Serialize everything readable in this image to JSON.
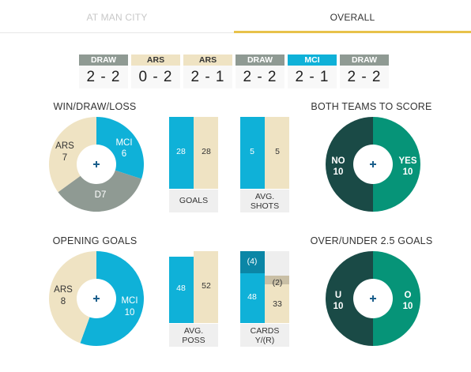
{
  "tabs": [
    {
      "label": "AT MAN CITY",
      "active": false
    },
    {
      "label": "OVERALL",
      "active": true
    }
  ],
  "results": [
    {
      "badge": "DRAW",
      "score": "2 - 2",
      "color": "#8f9a93",
      "text_color": "#ffffff"
    },
    {
      "badge": "ARS",
      "score": "0 - 2",
      "color": "#efe3c3",
      "text_color": "#333333"
    },
    {
      "badge": "ARS",
      "score": "2 - 1",
      "color": "#efe3c3",
      "text_color": "#333333"
    },
    {
      "badge": "DRAW",
      "score": "2 - 2",
      "color": "#8f9a93",
      "text_color": "#ffffff"
    },
    {
      "badge": "MCI",
      "score": "2 - 1",
      "color": "#0fb1d8",
      "text_color": "#ffffff"
    },
    {
      "badge": "DRAW",
      "score": "2 - 2",
      "color": "#8f9a93",
      "text_color": "#ffffff"
    }
  ],
  "colors": {
    "mci": "#0fb1d8",
    "ars": "#efe3c3",
    "draw": "#8f9a93",
    "yes_over": "#069478",
    "no_under": "#1a4a46",
    "caption_bg": "#efefef",
    "tab_accent": "#e8c24a",
    "card_red": "#c9bfa5"
  },
  "win_draw_loss": {
    "title": "WIN/DRAW/LOSS",
    "mci_label": "MCI",
    "mci_value": "6",
    "ars_label": "ARS",
    "ars_value": "7",
    "draw_label": "D7",
    "fractions": {
      "mci": 0.3,
      "draw": 0.35,
      "ars": 0.35
    }
  },
  "opening_goals": {
    "title": "OPENING GOALS",
    "mci_label": "MCI",
    "mci_value": "10",
    "ars_label": "ARS",
    "ars_value": "8",
    "fractions": {
      "mci": 0.5556,
      "ars": 0.4444
    }
  },
  "both_teams_to_score": {
    "title": "BOTH TEAMS TO SCORE",
    "yes_label": "YES",
    "yes_value": "10",
    "no_label": "NO",
    "no_value": "10",
    "fractions": {
      "yes": 0.5,
      "no": 0.5
    }
  },
  "over_under": {
    "title": "OVER/UNDER 2.5 GOALS",
    "over_label": "O",
    "over_value": "10",
    "under_label": "U",
    "under_value": "10",
    "fractions": {
      "over": 0.5,
      "under": 0.5
    }
  },
  "goals": {
    "caption": "GOALS",
    "mci": "28",
    "ars": "28",
    "mci_fill": 1.0,
    "ars_fill": 1.0
  },
  "avg_shots": {
    "caption_line1": "AVG.",
    "caption_line2": "SHOTS",
    "mci": "5",
    "ars": "5",
    "mci_fill": 1.0,
    "ars_fill": 1.0
  },
  "avg_poss": {
    "caption_line1": "AVG.",
    "caption_line2": "POSS",
    "mci": "48",
    "ars": "52",
    "mci_fill": 0.92,
    "ars_fill": 1.0
  },
  "cards": {
    "caption_line1": "CARDS",
    "caption_line2": "Y/(R)",
    "mci_yellow": "48",
    "mci_red": "(4)",
    "ars_yellow": "33",
    "ars_red": "(2)",
    "mci_yellow_fill": 0.69,
    "mci_red_fill": 0.31,
    "ars_yellow_fill": 0.54,
    "ars_red_fill": 0.12
  }
}
